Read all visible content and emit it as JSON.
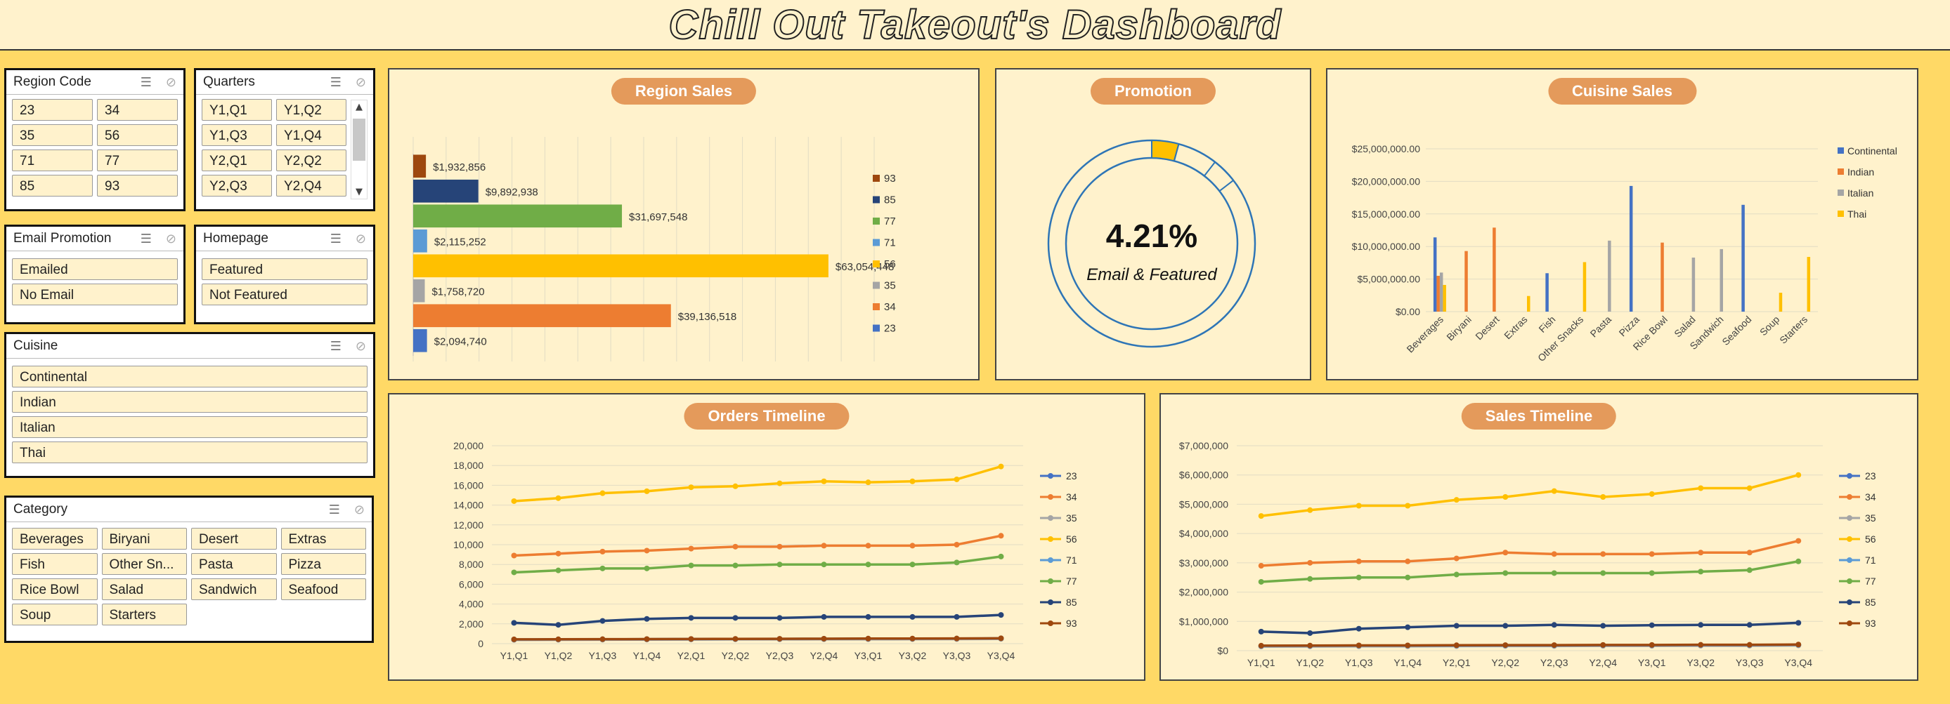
{
  "title": "Chill Out Takeout's Dashboard",
  "colors": {
    "23": "#4472C4",
    "34": "#ED7D31",
    "35": "#A5A5A5",
    "56": "#FFC000",
    "71": "#5B9BD5",
    "77": "#70AD47",
    "85": "#264478",
    "93": "#9E480E",
    "panel_bg": "#FFF2CC",
    "page_bg": "#FFD966",
    "pill": "#E49A5B",
    "ring": "#2E75B6"
  },
  "slicers": {
    "region": {
      "title": "Region Code",
      "items": [
        "23",
        "34",
        "35",
        "56",
        "71",
        "77",
        "85",
        "93"
      ]
    },
    "quarters": {
      "title": "Quarters",
      "items": [
        "Y1,Q1",
        "Y1,Q2",
        "Y1,Q3",
        "Y1,Q4",
        "Y2,Q1",
        "Y2,Q2",
        "Y2,Q3",
        "Y2,Q4"
      ]
    },
    "email": {
      "title": "Email Promotion",
      "items": [
        "Emailed",
        "No Email"
      ]
    },
    "homepage": {
      "title": "Homepage",
      "items": [
        "Featured",
        "Not Featured"
      ]
    },
    "cuisine": {
      "title": "Cuisine",
      "items": [
        "Continental",
        "Indian",
        "Italian",
        "Thai"
      ]
    },
    "category": {
      "title": "Category",
      "items": [
        "Beverages",
        "Biryani",
        "Desert",
        "Extras",
        "Fish",
        "Other Sn...",
        "Pasta",
        "Pizza",
        "Rice Bowl",
        "Salad",
        "Sandwich",
        "Seafood",
        "Soup",
        "Starters"
      ]
    }
  },
  "panels": {
    "region_sales": "Region Sales",
    "promotion": "Promotion",
    "cuisine_sales": "Cuisine Sales",
    "orders_timeline": "Orders Timeline",
    "sales_timeline": "Sales Timeline"
  },
  "promotion": {
    "value_label": "4.21%",
    "value": 4.21,
    "caption": "Email & Featured"
  },
  "chart_data": [
    {
      "id": "region_sales",
      "type": "bar",
      "orientation": "horizontal",
      "title": "Region Sales",
      "categories": [
        "93",
        "85",
        "77",
        "71",
        "56",
        "35",
        "34",
        "23"
      ],
      "values": [
        1932856,
        9892938,
        31697548,
        2115252,
        63054448,
        1758720,
        39136518,
        2094740
      ],
      "labels": [
        "$1,932,856",
        "$9,892,938",
        "$31,697,548",
        "$2,115,252",
        "$63,054,448",
        "$1,758,720",
        "$39,136,518",
        "$2,094,740"
      ],
      "legend": [
        "93",
        "85",
        "77",
        "71",
        "56",
        "35",
        "34",
        "23"
      ],
      "legend_position": "right",
      "xlim": [
        0,
        70000000
      ],
      "grid": true
    },
    {
      "id": "cuisine_sales",
      "type": "bar",
      "title": "Cuisine Sales",
      "categories": [
        "Beverages",
        "Biryani",
        "Desert",
        "Extras",
        "Fish",
        "Other Snacks",
        "Pasta",
        "Pizza",
        "Rice Bowl",
        "Salad",
        "Sandwich",
        "Seafood",
        "Soup",
        "Starters"
      ],
      "series": [
        {
          "name": "Continental",
          "values": [
            11400000,
            0,
            0,
            0,
            5900000,
            0,
            0,
            19300000,
            0,
            0,
            0,
            16400000,
            0,
            0
          ]
        },
        {
          "name": "Indian",
          "values": [
            5500000,
            9300000,
            12900000,
            0,
            0,
            0,
            0,
            0,
            10600000,
            0,
            0,
            0,
            0,
            0
          ]
        },
        {
          "name": "Italian",
          "values": [
            6000000,
            0,
            0,
            0,
            0,
            0,
            10900000,
            0,
            0,
            8300000,
            9600000,
            0,
            0,
            0
          ]
        },
        {
          "name": "Thai",
          "values": [
            4100000,
            0,
            0,
            2400000,
            0,
            7600000,
            0,
            0,
            0,
            0,
            0,
            0,
            2900000,
            8400000
          ]
        }
      ],
      "yticks": [
        "$0.00",
        "$5,000,000.00",
        "$10,000,000.00",
        "$15,000,000.00",
        "$20,000,000.00",
        "$25,000,000.00"
      ],
      "ylim": [
        0,
        25000000
      ],
      "legend_position": "right",
      "grid": true
    },
    {
      "id": "orders_timeline",
      "type": "line",
      "title": "Orders Timeline",
      "x": [
        "Y1,Q1",
        "Y1,Q2",
        "Y1,Q3",
        "Y1,Q4",
        "Y2,Q1",
        "Y2,Q2",
        "Y2,Q3",
        "Y2,Q4",
        "Y3,Q1",
        "Y3,Q2",
        "Y3,Q3",
        "Y3,Q4"
      ],
      "yticks": [
        "0",
        "2,000",
        "4,000",
        "6,000",
        "8,000",
        "10,000",
        "12,000",
        "14,000",
        "16,000",
        "18,000",
        "20,000"
      ],
      "ylim": [
        0,
        20000
      ],
      "series": [
        {
          "name": "23",
          "values": [
            400,
            420,
            430,
            440,
            450,
            460,
            470,
            480,
            480,
            490,
            500,
            520
          ]
        },
        {
          "name": "34",
          "values": [
            8900,
            9100,
            9300,
            9400,
            9600,
            9800,
            9800,
            9900,
            9900,
            9900,
            10000,
            10900
          ]
        },
        {
          "name": "35",
          "values": [
            380,
            390,
            400,
            410,
            420,
            430,
            430,
            440,
            440,
            450,
            460,
            480
          ]
        },
        {
          "name": "56",
          "values": [
            14400,
            14700,
            15200,
            15400,
            15800,
            15900,
            16200,
            16400,
            16300,
            16400,
            16600,
            17900
          ]
        },
        {
          "name": "71",
          "values": [
            420,
            430,
            440,
            450,
            460,
            470,
            480,
            490,
            500,
            500,
            510,
            530
          ]
        },
        {
          "name": "77",
          "values": [
            7200,
            7400,
            7600,
            7600,
            7900,
            7900,
            8000,
            8000,
            8000,
            8000,
            8200,
            8800
          ]
        },
        {
          "name": "85",
          "values": [
            2100,
            1900,
            2300,
            2500,
            2600,
            2600,
            2600,
            2700,
            2700,
            2700,
            2700,
            2900
          ]
        },
        {
          "name": "93",
          "values": [
            430,
            440,
            450,
            460,
            470,
            480,
            490,
            500,
            510,
            510,
            520,
            540
          ]
        }
      ],
      "legend_position": "right",
      "grid": true
    },
    {
      "id": "sales_timeline",
      "type": "line",
      "title": "Sales Timeline",
      "x": [
        "Y1,Q1",
        "Y1,Q2",
        "Y1,Q3",
        "Y1,Q4",
        "Y2,Q1",
        "Y2,Q2",
        "Y2,Q3",
        "Y2,Q4",
        "Y3,Q1",
        "Y3,Q2",
        "Y3,Q3",
        "Y3,Q4"
      ],
      "yticks": [
        "$0",
        "$1,000,000",
        "$2,000,000",
        "$3,000,000",
        "$4,000,000",
        "$5,000,000",
        "$6,000,000",
        "$7,000,000"
      ],
      "ylim": [
        0,
        7000000
      ],
      "series": [
        {
          "name": "23",
          "values": [
            150000,
            155000,
            160000,
            160000,
            165000,
            170000,
            170000,
            175000,
            175000,
            180000,
            180000,
            190000
          ]
        },
        {
          "name": "34",
          "values": [
            2900000,
            3000000,
            3050000,
            3050000,
            3150000,
            3350000,
            3300000,
            3300000,
            3300000,
            3350000,
            3350000,
            3750000
          ]
        },
        {
          "name": "35",
          "values": [
            140000,
            145000,
            150000,
            150000,
            155000,
            160000,
            160000,
            165000,
            165000,
            170000,
            170000,
            180000
          ]
        },
        {
          "name": "56",
          "values": [
            4600000,
            4800000,
            4950000,
            4950000,
            5150000,
            5250000,
            5450000,
            5250000,
            5350000,
            5550000,
            5550000,
            6000000
          ]
        },
        {
          "name": "71",
          "values": [
            160000,
            165000,
            170000,
            170000,
            175000,
            180000,
            180000,
            185000,
            185000,
            190000,
            190000,
            200000
          ]
        },
        {
          "name": "77",
          "values": [
            2350000,
            2450000,
            2500000,
            2500000,
            2600000,
            2650000,
            2650000,
            2650000,
            2650000,
            2700000,
            2750000,
            3050000
          ]
        },
        {
          "name": "85",
          "values": [
            650000,
            600000,
            750000,
            800000,
            850000,
            850000,
            880000,
            850000,
            870000,
            880000,
            880000,
            950000
          ]
        },
        {
          "name": "93",
          "values": [
            170000,
            175000,
            180000,
            180000,
            185000,
            190000,
            190000,
            195000,
            195000,
            200000,
            200000,
            210000
          ]
        }
      ],
      "legend_position": "right",
      "grid": true
    }
  ]
}
